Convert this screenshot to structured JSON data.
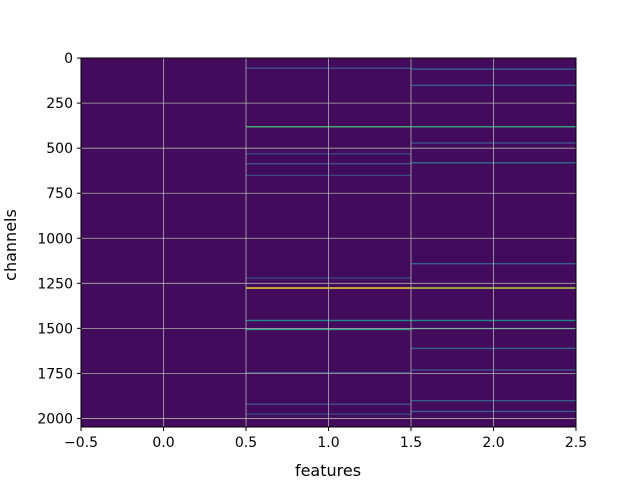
{
  "chart_data": {
    "type": "heatmap",
    "title": "",
    "xlabel": "features",
    "ylabel": "channels",
    "x_ticks": [
      "−0.5",
      "0.0",
      "0.5",
      "1.0",
      "1.5",
      "2.0",
      "2.5"
    ],
    "y_ticks": [
      "0",
      "250",
      "500",
      "750",
      "1000",
      "1250",
      "1500",
      "1750",
      "2000"
    ],
    "x_tick_values": [
      -0.5,
      0.0,
      0.5,
      1.0,
      1.5,
      2.0,
      2.5
    ],
    "y_tick_values": [
      0,
      250,
      500,
      750,
      1000,
      1250,
      1500,
      1750,
      2000
    ],
    "xlim": [
      -0.5,
      2.5
    ],
    "ylim": [
      2047.5,
      -0.5
    ],
    "grid": true,
    "colormap": "viridis",
    "columns": [
      0,
      1,
      2
    ],
    "n_channels": 2048,
    "background_value": 0.03,
    "highlighted_rows": [
      {
        "column": 1,
        "channel": 55,
        "value": 0.25
      },
      {
        "column": 1,
        "channel": 380,
        "value": 0.65
      },
      {
        "column": 1,
        "channel": 530,
        "value": 0.22
      },
      {
        "column": 1,
        "channel": 585,
        "value": 0.25
      },
      {
        "column": 1,
        "channel": 650,
        "value": 0.22
      },
      {
        "column": 1,
        "channel": 1220,
        "value": 0.2
      },
      {
        "column": 1,
        "channel": 1275,
        "value": 1.0
      },
      {
        "column": 1,
        "channel": 1455,
        "value": 0.45
      },
      {
        "column": 1,
        "channel": 1505,
        "value": 0.55
      },
      {
        "column": 1,
        "channel": 1745,
        "value": 0.25
      },
      {
        "column": 1,
        "channel": 1920,
        "value": 0.25
      },
      {
        "column": 1,
        "channel": 1975,
        "value": 0.2
      },
      {
        "column": 2,
        "channel": 60,
        "value": 0.3
      },
      {
        "column": 2,
        "channel": 150,
        "value": 0.3
      },
      {
        "column": 2,
        "channel": 380,
        "value": 0.6
      },
      {
        "column": 2,
        "channel": 470,
        "value": 0.25
      },
      {
        "column": 2,
        "channel": 580,
        "value": 0.35
      },
      {
        "column": 2,
        "channel": 1140,
        "value": 0.3
      },
      {
        "column": 2,
        "channel": 1275,
        "value": 0.9
      },
      {
        "column": 2,
        "channel": 1455,
        "value": 0.45
      },
      {
        "column": 2,
        "channel": 1500,
        "value": 0.5
      },
      {
        "column": 2,
        "channel": 1610,
        "value": 0.3
      },
      {
        "column": 2,
        "channel": 1730,
        "value": 0.25
      },
      {
        "column": 2,
        "channel": 1900,
        "value": 0.3
      },
      {
        "column": 2,
        "channel": 1960,
        "value": 0.3
      }
    ]
  }
}
